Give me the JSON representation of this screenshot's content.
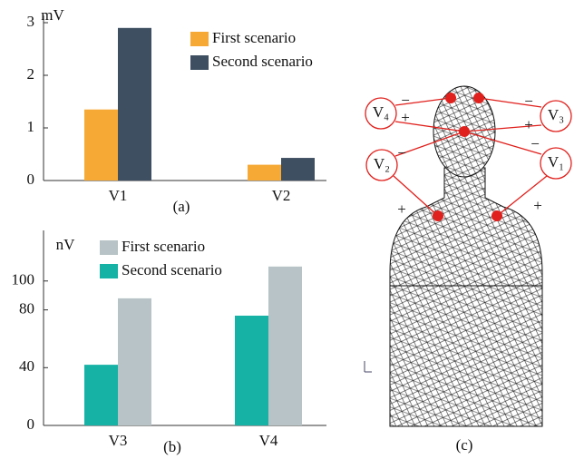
{
  "chart_data": [
    {
      "type": "bar",
      "caption": "(a)",
      "y_label": "mV",
      "categories": [
        "V1",
        "V2"
      ],
      "series": [
        {
          "name": "First scenario",
          "color": "#f6a935",
          "values": [
            1.35,
            0.3
          ]
        },
        {
          "name": "Second scenario",
          "color": "#3f4f62",
          "values": [
            2.9,
            0.43
          ]
        }
      ],
      "ylim": [
        0,
        3
      ],
      "yticks": [
        0,
        1,
        2,
        3
      ]
    },
    {
      "type": "bar",
      "caption": "(b)",
      "y_label": "nV",
      "categories": [
        "V3",
        "V4"
      ],
      "series": [
        {
          "name": "First scenario",
          "color": "#b7c3c6",
          "values": [
            88,
            110
          ]
        },
        {
          "name": "Second scenario",
          "color": "#16b2a6",
          "values": [
            42,
            76
          ]
        }
      ],
      "ylim": [
        0,
        130
      ],
      "yticks": [
        0,
        40,
        80,
        100
      ]
    }
  ],
  "diagram": {
    "caption": "(c)",
    "electrodes": [
      {
        "label": "V₄",
        "minus": "−",
        "plus": "+"
      },
      {
        "label": "V₃",
        "minus": "−",
        "plus": "+"
      },
      {
        "label": "V₂",
        "minus": "−",
        "plus": "+"
      },
      {
        "label": "V₁",
        "minus": "−",
        "plus": "+"
      }
    ]
  }
}
